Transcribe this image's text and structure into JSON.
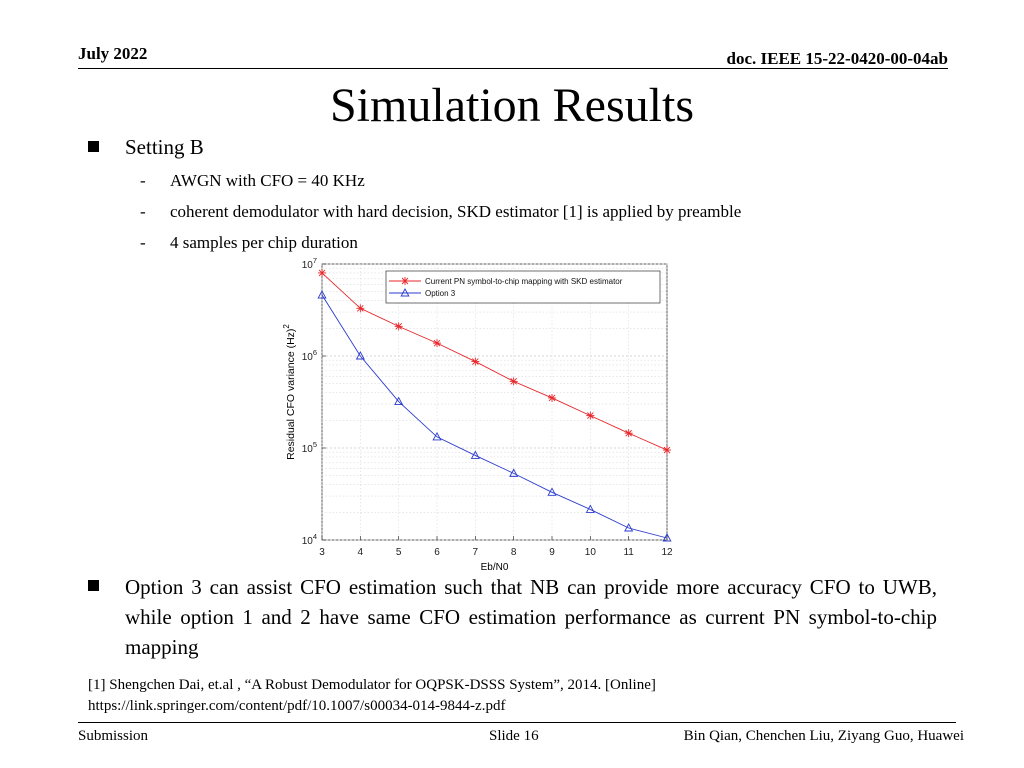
{
  "header": {
    "date": "July 2022",
    "doc_id": "doc. IEEE 15-22-0420-00-04ab"
  },
  "title": "Simulation Results",
  "bullets": {
    "setting": "Setting B",
    "sub_items": [
      "AWGN with CFO = 40 KHz",
      "coherent demodulator with hard decision, SKD estimator [1] is applied by preamble",
      "4 samples per chip duration"
    ],
    "dash": "-",
    "conclusion": "Option 3 can assist CFO estimation such that NB can provide more accuracy CFO to UWB, while option 1 and 2 have same CFO estimation performance as current PN symbol-to-chip mapping"
  },
  "reference": {
    "line1": "[1] Shengchen Dai, et.al , “A Robust Demodulator for OQPSK-DSSS System”, 2014. [Online]",
    "line2": "https://link.springer.com/content/pdf/10.1007/s00034-014-9844-z.pdf"
  },
  "footer": {
    "left": "Submission",
    "center": "Slide 16",
    "right": "Bin Qian, Chenchen Liu, Ziyang Guo, Huawei"
  },
  "colors": {
    "series1": "#e8262a",
    "series2": "#2b3bcf",
    "grid": "#d9d9d9"
  },
  "chart_data": {
    "type": "line",
    "title": "",
    "xlabel": "Eb/N0",
    "ylabel": "Residual CFO variance (Hz)",
    "ylabel_superscript": "2",
    "yscale": "log",
    "xlim": [
      3,
      12
    ],
    "ylim": [
      10000,
      10000000
    ],
    "x": [
      3,
      4,
      5,
      6,
      7,
      8,
      9,
      10,
      11,
      12
    ],
    "xticks": [
      "3",
      "4",
      "5",
      "6",
      "7",
      "8",
      "9",
      "10",
      "11",
      "12"
    ],
    "yticks": [
      {
        "base": "10",
        "exp": "7",
        "value": 10000000
      },
      {
        "base": "10",
        "exp": "6",
        "value": 1000000
      },
      {
        "base": "10",
        "exp": "5",
        "value": 100000
      },
      {
        "base": "10",
        "exp": "4",
        "value": 10000
      }
    ],
    "grid": true,
    "legend_position": "top-right",
    "series": [
      {
        "name": "Current PN symbol-to-chip mapping with SKD estimator",
        "marker": "star",
        "color": "#e8262a",
        "values": [
          8000000,
          3300000,
          2100000,
          1380000,
          870000,
          530000,
          350000,
          225000,
          145000,
          95000
        ]
      },
      {
        "name": "Option 3",
        "marker": "triangle",
        "color": "#2b3bcf",
        "values": [
          4600000,
          1000000,
          320000,
          132000,
          83000,
          53000,
          33000,
          21500,
          13500,
          9000
        ]
      }
    ]
  }
}
